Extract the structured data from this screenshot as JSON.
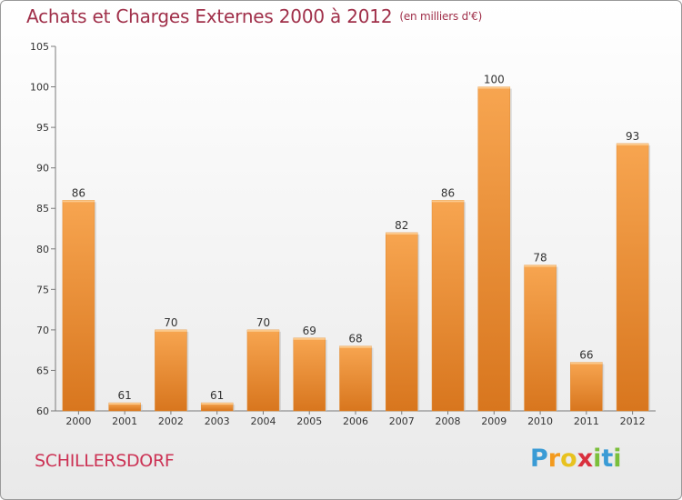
{
  "header": {
    "title": "Achats et Charges Externes 2000 à 2012",
    "unit": "(en milliers d'€)"
  },
  "footer": {
    "commune": "SCHILLERSDORF",
    "logo_letters": [
      {
        "ch": "P",
        "color": "#3a9bd5"
      },
      {
        "ch": "r",
        "color": "#f39a1e"
      },
      {
        "ch": "o",
        "color": "#e8c21f"
      },
      {
        "ch": "x",
        "color": "#d9303e"
      },
      {
        "ch": "i",
        "color": "#7bbf3b"
      },
      {
        "ch": "t",
        "color": "#3a9bd5"
      },
      {
        "ch": "i",
        "color": "#7bbf3b"
      }
    ]
  },
  "chart_data": {
    "type": "bar",
    "title": "Achats et Charges Externes 2000 à 2012",
    "subtitle": "(en milliers d'€)",
    "categories": [
      "2000",
      "2001",
      "2002",
      "2003",
      "2004",
      "2005",
      "2006",
      "2007",
      "2008",
      "2009",
      "2010",
      "2011",
      "2012"
    ],
    "values": [
      86,
      61,
      70,
      61,
      70,
      69,
      68,
      82,
      86,
      100,
      78,
      66,
      93
    ],
    "ylim": [
      60,
      105
    ],
    "yticks": [
      60,
      65,
      70,
      75,
      80,
      85,
      90,
      95,
      100,
      105
    ],
    "grid": false,
    "data_labels": true,
    "colors": {
      "bar_light": "#f7a550",
      "bar_dark": "#d8761e",
      "axis": "#7a7a7a",
      "text": "#333333"
    }
  }
}
